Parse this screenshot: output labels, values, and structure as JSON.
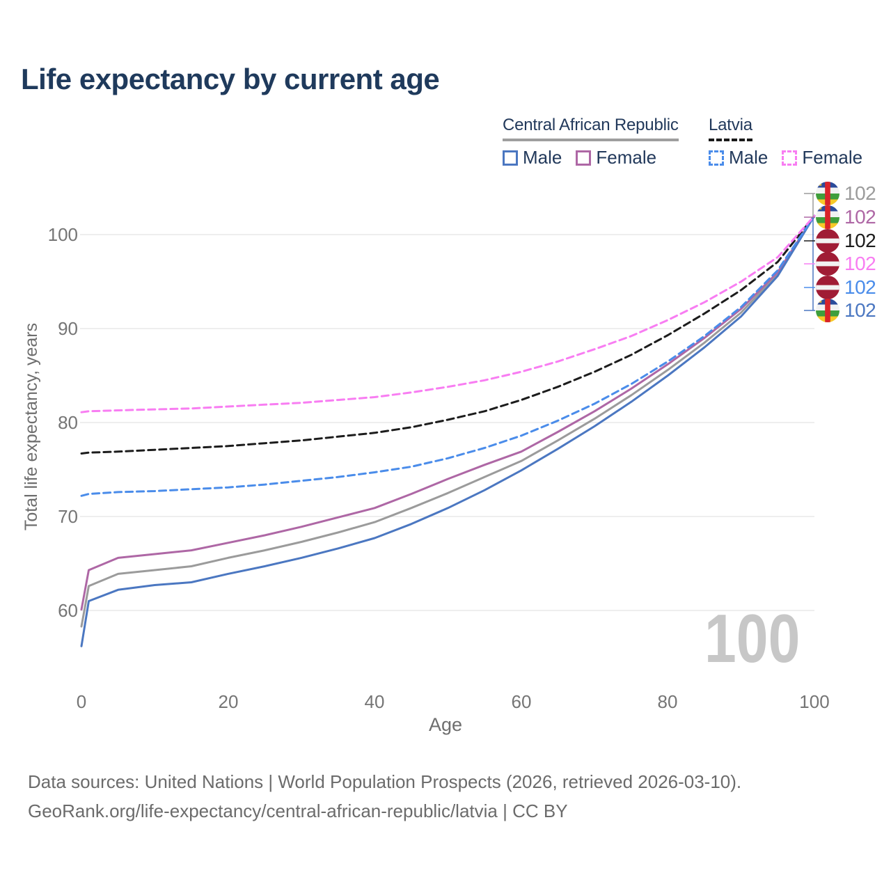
{
  "title": "Life expectancy by current age",
  "legend": {
    "group1": {
      "label": "Central African Republic",
      "line_style": "solid",
      "items": [
        {
          "label": "Male",
          "color": "#4b77c1"
        },
        {
          "label": "Female",
          "color": "#ae67a5"
        }
      ]
    },
    "group2": {
      "label": "Latvia",
      "line_style": "dashed",
      "items": [
        {
          "label": "Male",
          "color": "#4a8cea"
        },
        {
          "label": "Female",
          "color": "#f87df2"
        }
      ]
    }
  },
  "watermark": "100",
  "footer": {
    "line1": "Data sources: United Nations | World Population Prospects (2026, retrieved 2026-03-10).",
    "line2": "GeoRank.org/life-expectancy/central-african-republic/latvia | CC BY"
  },
  "chart_data": {
    "type": "line",
    "title": "Life expectancy by current age",
    "xlabel": "Age",
    "ylabel": "Total life expectancy, years",
    "xlim": [
      0,
      100
    ],
    "ylim": [
      54,
      104
    ],
    "xticks": [
      0,
      20,
      40,
      60,
      80,
      100
    ],
    "yticks": [
      100,
      90,
      80,
      70,
      60
    ],
    "grid": "horizontal-only",
    "legend_position": "top-right",
    "x": [
      0,
      1,
      5,
      10,
      15,
      20,
      25,
      30,
      35,
      40,
      45,
      50,
      55,
      60,
      65,
      70,
      75,
      80,
      85,
      90,
      95,
      100
    ],
    "series": [
      {
        "id": "car_total",
        "name": "Central African Republic — Total",
        "style": "solid",
        "color": "#9b9b9b",
        "values": [
          58.3,
          62.6,
          63.9,
          64.3,
          64.7,
          65.6,
          66.4,
          67.3,
          68.3,
          69.4,
          70.9,
          72.5,
          74.2,
          75.9,
          78.1,
          80.4,
          82.9,
          85.6,
          88.5,
          91.7,
          95.8,
          102.0
        ]
      },
      {
        "id": "car_female",
        "name": "Central African Republic — Female",
        "style": "solid",
        "color": "#ae67a5",
        "values": [
          60.1,
          64.3,
          65.6,
          66.0,
          66.4,
          67.2,
          68.0,
          68.9,
          69.9,
          70.9,
          72.4,
          74.0,
          75.5,
          76.9,
          79.0,
          81.2,
          83.6,
          86.2,
          89.0,
          92.1,
          96.0,
          102.0
        ]
      },
      {
        "id": "car_male",
        "name": "Central African Republic — Male",
        "style": "solid",
        "color": "#4b77c1",
        "values": [
          56.2,
          61.0,
          62.2,
          62.7,
          63.0,
          63.9,
          64.7,
          65.6,
          66.6,
          67.7,
          69.2,
          70.9,
          72.8,
          74.9,
          77.2,
          79.6,
          82.2,
          85.0,
          88.0,
          91.3,
          95.6,
          102.0
        ]
      },
      {
        "id": "latvia_total",
        "name": "Latvia — Total",
        "style": "dashed",
        "color": "#1c1c1c",
        "values": [
          76.7,
          76.8,
          76.9,
          77.1,
          77.3,
          77.5,
          77.8,
          78.1,
          78.5,
          78.9,
          79.5,
          80.3,
          81.2,
          82.4,
          83.8,
          85.4,
          87.2,
          89.3,
          91.6,
          94.1,
          97.1,
          102.0
        ]
      },
      {
        "id": "latvia_male",
        "name": "Latvia — Male",
        "style": "dashed",
        "color": "#4a8cea",
        "values": [
          72.2,
          72.4,
          72.6,
          72.7,
          72.9,
          73.1,
          73.4,
          73.8,
          74.2,
          74.7,
          75.3,
          76.2,
          77.3,
          78.6,
          80.2,
          82.0,
          84.1,
          86.5,
          89.2,
          92.3,
          96.2,
          102.0
        ]
      },
      {
        "id": "latvia_female",
        "name": "Latvia — Female",
        "style": "dashed",
        "color": "#f87df2",
        "values": [
          81.1,
          81.2,
          81.3,
          81.4,
          81.5,
          81.7,
          81.9,
          82.1,
          82.4,
          82.7,
          83.2,
          83.8,
          84.5,
          85.4,
          86.5,
          87.8,
          89.2,
          90.9,
          92.8,
          95.0,
          97.6,
          102.0
        ]
      }
    ],
    "end_labels": [
      {
        "series": "car_total",
        "text": "102",
        "color": "#9b9b9b",
        "flag": "central-african-republic"
      },
      {
        "series": "car_female",
        "text": "102",
        "color": "#ae67a5",
        "flag": "central-african-republic"
      },
      {
        "series": "latvia_total",
        "text": "102",
        "color": "#1c1c1c",
        "flag": "latvia"
      },
      {
        "series": "latvia_female",
        "text": "102",
        "color": "#f87df2",
        "flag": "latvia"
      },
      {
        "series": "latvia_male",
        "text": "102",
        "color": "#4a8cea",
        "flag": "latvia"
      },
      {
        "series": "car_male",
        "text": "102",
        "color": "#4b77c1",
        "flag": "central-african-republic"
      }
    ]
  }
}
